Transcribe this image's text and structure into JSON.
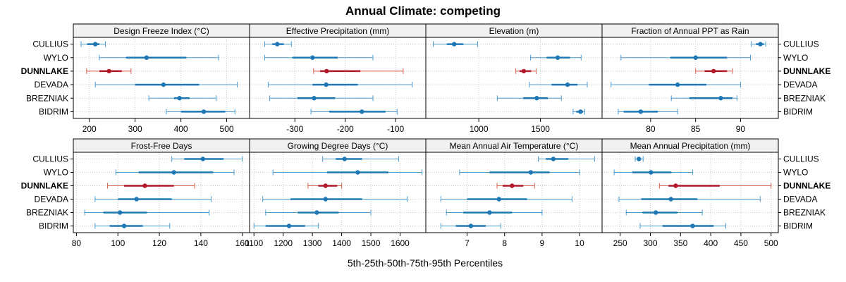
{
  "chart_data": {
    "type": "interval-dotplot",
    "title": "Annual Climate: competing",
    "xlabel": "5th-25th-50th-75th-95th Percentiles",
    "sites": [
      "CULLIUS",
      "WYLO",
      "DUNNLAKE",
      "DEVADA",
      "BREZNIAK",
      "BIDRIM"
    ],
    "highlight": "DUNNLAKE",
    "colors": {
      "normal": "#1f78b4",
      "normal_thin": "#4a9bd0",
      "highlight": "#b2182b",
      "highlight_thin": "#d6604d",
      "strip_bg": "#f0f0f0",
      "grid": "#c8c8c8"
    },
    "panels": [
      {
        "name": "Design Freeze Index (°C)",
        "xlim": [
          165,
          550
        ],
        "ticks": [
          200,
          300,
          400,
          500
        ],
        "data": {
          "CULLIUS": [
            182,
            195,
            213,
            222,
            235
          ],
          "WYLO": [
            222,
            280,
            325,
            412,
            482
          ],
          "DUNNLAKE": [
            194,
            222,
            243,
            271,
            291
          ],
          "DEVADA": [
            213,
            300,
            362,
            440,
            523
          ],
          "BREZNIAK": [
            330,
            385,
            397,
            419,
            477
          ],
          "BIDRIM": [
            368,
            400,
            450,
            497,
            518
          ]
        }
      },
      {
        "name": "Effective Precipitation (mm)",
        "xlim": [
          -390,
          -40
        ],
        "ticks": [
          -300,
          -200,
          -100
        ],
        "data": {
          "CULLIUS": [
            -360,
            -345,
            -335,
            -322,
            -307
          ],
          "WYLO": [
            -360,
            -305,
            -265,
            -215,
            -145
          ],
          "DUNNLAKE": [
            -263,
            -250,
            -237,
            -170,
            -85
          ],
          "DEVADA": [
            -353,
            -265,
            -238,
            -175,
            -67
          ],
          "BREZNIAK": [
            -350,
            -295,
            -262,
            -220,
            -145
          ],
          "BIDRIM": [
            -268,
            -232,
            -167,
            -120,
            -97
          ]
        }
      },
      {
        "name": "Elevation (m)",
        "xlim": [
          570,
          2000
        ],
        "ticks": [
          1000,
          1500
        ],
        "data": {
          "CULLIUS": [
            630,
            740,
            800,
            875,
            990
          ],
          "WYLO": [
            1420,
            1550,
            1640,
            1740,
            1830
          ],
          "DUNNLAKE": [
            1300,
            1330,
            1365,
            1425,
            1465
          ],
          "DEVADA": [
            1410,
            1590,
            1720,
            1800,
            1880
          ],
          "BREZNIAK": [
            1150,
            1360,
            1470,
            1560,
            1670
          ],
          "BIDRIM": [
            1765,
            1790,
            1825,
            1845,
            1860
          ]
        }
      },
      {
        "name": "Fraction of Annual PPT as Rain",
        "xlim": [
          74.6,
          94.2
        ],
        "ticks": [
          80,
          85,
          90
        ],
        "data": {
          "CULLIUS": [
            91.2,
            91.7,
            92.2,
            92.6,
            92.8
          ],
          "WYLO": [
            76.7,
            82.2,
            85.0,
            88.5,
            91.1
          ],
          "DUNNLAKE": [
            85.0,
            86.0,
            87.0,
            88.5,
            89.1
          ],
          "DEVADA": [
            75.6,
            79.8,
            83.0,
            86.2,
            90.0
          ],
          "BREZNIAK": [
            82.3,
            84.3,
            87.8,
            89.1,
            89.6
          ],
          "BIDRIM": [
            76.4,
            77.0,
            78.9,
            80.8,
            83.0
          ]
        }
      },
      {
        "name": "Frost-Free Days",
        "xlim": [
          78.5,
          163.5
        ],
        "ticks": [
          80,
          100,
          120,
          140,
          160
        ],
        "data": {
          "CULLIUS": [
            126,
            132,
            141,
            151,
            160
          ],
          "WYLO": [
            99,
            110,
            127,
            146,
            156
          ],
          "DUNNLAKE": [
            95,
            103,
            113,
            127,
            137
          ],
          "DEVADA": [
            89,
            100,
            109,
            126,
            145
          ],
          "BREZNIAK": [
            84,
            93,
            101,
            114,
            144
          ],
          "BIDRIM": [
            89,
            96,
            103,
            112,
            125
          ]
        }
      },
      {
        "name": "Growing Degree Days (°C)",
        "xlim": [
          1085,
          1688
        ],
        "ticks": [
          1100,
          1200,
          1300,
          1400,
          1500,
          1600
        ],
        "data": {
          "CULLIUS": [
            1335,
            1380,
            1410,
            1470,
            1595
          ],
          "WYLO": [
            1165,
            1350,
            1455,
            1560,
            1675
          ],
          "DUNNLAKE": [
            1285,
            1320,
            1345,
            1385,
            1400
          ],
          "DEVADA": [
            1130,
            1225,
            1345,
            1470,
            1625
          ],
          "BREZNIAK": [
            1140,
            1250,
            1315,
            1390,
            1500
          ],
          "BIDRIM": [
            1100,
            1140,
            1220,
            1275,
            1320
          ]
        }
      },
      {
        "name": "Mean Annual Air Temperature (°C)",
        "xlim": [
          5.9,
          10.6
        ],
        "ticks": [
          7,
          8,
          9,
          10
        ],
        "data": {
          "CULLIUS": [
            8.9,
            9.1,
            9.3,
            9.7,
            10.4
          ],
          "WYLO": [
            6.8,
            7.6,
            8.7,
            9.2,
            10.0
          ],
          "DUNNLAKE": [
            7.8,
            7.95,
            8.2,
            8.5,
            8.8
          ],
          "DEVADA": [
            6.3,
            7.0,
            7.85,
            8.6,
            9.8
          ],
          "BREZNIAK": [
            6.45,
            6.9,
            7.6,
            8.2,
            9.0
          ],
          "BIDRIM": [
            6.3,
            6.7,
            7.1,
            7.5,
            7.9
          ]
        }
      },
      {
        "name": "Mean Annual Precipitation (mm)",
        "xlim": [
          220,
          512
        ],
        "ticks": [
          250,
          300,
          350,
          400,
          450,
          500
        ],
        "data": {
          "CULLIUS": [
            275,
            278,
            281,
            284,
            288
          ],
          "WYLO": [
            240,
            270,
            301,
            335,
            370
          ],
          "DUNNLAKE": [
            315,
            330,
            342,
            415,
            500
          ],
          "DEVADA": [
            248,
            285,
            334,
            378,
            482
          ],
          "BREZNIAK": [
            260,
            287,
            309,
            345,
            386
          ],
          "BIDRIM": [
            283,
            320,
            370,
            405,
            425
          ]
        }
      }
    ]
  }
}
